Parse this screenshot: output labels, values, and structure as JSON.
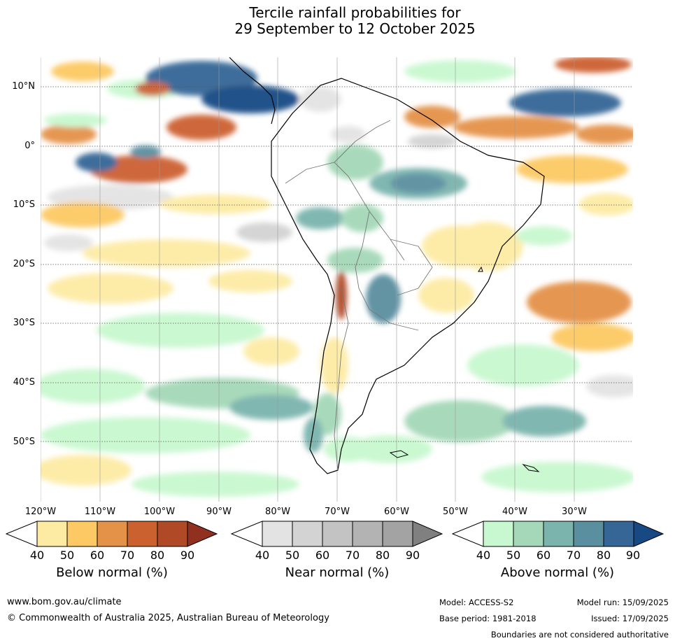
{
  "title": {
    "line1": "Tercile rainfall probabilities for",
    "line2": "29 September to 12 October 2025"
  },
  "axes": {
    "lat_labels": [
      "10°N",
      "0°",
      "10°S",
      "20°S",
      "30°S",
      "40°S",
      "50°S"
    ],
    "lon_labels": [
      "120°W",
      "110°W",
      "100°W",
      "90°W",
      "80°W",
      "70°W",
      "60°W",
      "50°W",
      "40°W",
      "30°W"
    ]
  },
  "colorbars": [
    {
      "title": "Below normal (%)",
      "ticks": [
        "40",
        "50",
        "60",
        "70",
        "80",
        "90"
      ],
      "colors": [
        "#fdeba4",
        "#fcc964",
        "#e49248",
        "#cc6130",
        "#b04a26",
        "#923020"
      ]
    },
    {
      "title": "Near normal (%)",
      "ticks": [
        "40",
        "50",
        "60",
        "70",
        "80",
        "90"
      ],
      "colors": [
        "#e3e3e3",
        "#d3d3d3",
        "#c3c3c3",
        "#b3b3b3",
        "#a3a3a3",
        "#808080"
      ]
    },
    {
      "title": "Above normal (%)",
      "ticks": [
        "40",
        "50",
        "60",
        "70",
        "80",
        "90"
      ],
      "colors": [
        "#c8f8cf",
        "#a4d8b8",
        "#7ab4ad",
        "#5a8fa0",
        "#366696",
        "#174a84"
      ]
    }
  ],
  "footer": {
    "website": "www.bom.gov.au/climate",
    "copyright": "© Commonwealth of Australia 2025, Australian Bureau of Meteorology",
    "model": "Model: ACCESS-S2",
    "base_period": "Base period: 1981-2018",
    "model_run": "Model run: 15/09/2025",
    "issued": "Issued: 17/09/2025",
    "disclaimer": "Boundaries are not considered authoritative"
  }
}
